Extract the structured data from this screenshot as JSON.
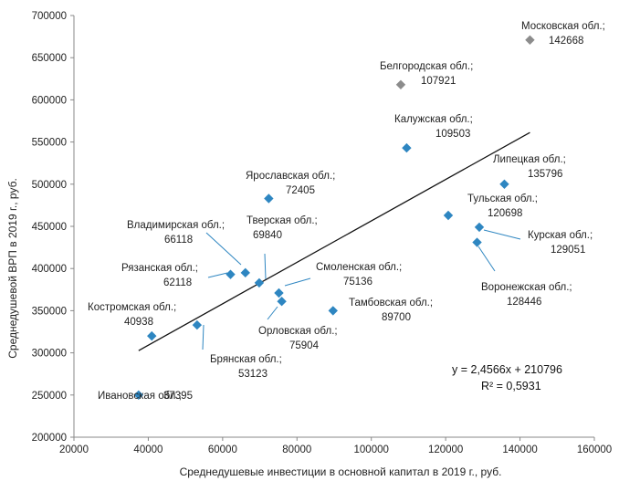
{
  "chart_data": {
    "type": "scatter",
    "xlabel": "Среднедушевые  инвестиции в основной капитал в 2019 г., руб.",
    "ylabel": "Среднедушевой  ВРП в 2019 г., руб.",
    "xlim": [
      20000,
      160000
    ],
    "ylim": [
      200000,
      700000
    ],
    "x_ticks": [
      "20000",
      "40000",
      "60000",
      "80000",
      "100000",
      "120000",
      "140000",
      "160000"
    ],
    "y_ticks": [
      "200000",
      "250000",
      "300000",
      "350000",
      "400000",
      "450000",
      "500000",
      "550000",
      "600000",
      "650000",
      "700000"
    ],
    "grid": "none",
    "colors": {
      "point": "#2E86C1",
      "outlier": "#8C8C8C",
      "trendline": "#111111",
      "leader": "#2E86C1"
    },
    "points": [
      {
        "name": "Ивановская обл.;",
        "value": "37395",
        "x": 37395,
        "y": 250000,
        "outlier": false
      },
      {
        "name": "Костромская обл.;",
        "value": "40938",
        "x": 40938,
        "y": 320000,
        "outlier": false
      },
      {
        "name": "Брянская обл.;",
        "value": "53123",
        "x": 53123,
        "y": 333000,
        "outlier": false
      },
      {
        "name": "Рязанская обл.;",
        "value": "62118",
        "x": 62118,
        "y": 393000,
        "outlier": false
      },
      {
        "name": "Владимирская обл.;",
        "value": "66118",
        "x": 66118,
        "y": 395000,
        "outlier": false
      },
      {
        "name": "Тверская обл.;",
        "value": "69840",
        "x": 69840,
        "y": 383000,
        "outlier": false
      },
      {
        "name": "Ярославская обл.;",
        "value": "72405",
        "x": 72405,
        "y": 483000,
        "outlier": false
      },
      {
        "name": "Смоленская обл.;",
        "value": "75136",
        "x": 75136,
        "y": 371000,
        "outlier": false
      },
      {
        "name": "Орловская обл.;",
        "value": "75904",
        "x": 75904,
        "y": 361000,
        "outlier": false
      },
      {
        "name": "Тамбовская обл.;",
        "value": "89700",
        "x": 89700,
        "y": 350000,
        "outlier": false
      },
      {
        "name": "Белгородская обл.;",
        "value": "107921",
        "x": 107921,
        "y": 618000,
        "outlier": true
      },
      {
        "name": "Калужская обл.;",
        "value": "109503",
        "x": 109503,
        "y": 543000,
        "outlier": false
      },
      {
        "name": "Тульская обл.;",
        "value": "120698",
        "x": 120698,
        "y": 463000,
        "outlier": false
      },
      {
        "name": "Воронежская обл.;",
        "value": "128446",
        "x": 128446,
        "y": 431000,
        "outlier": false
      },
      {
        "name": "Курская обл.;",
        "value": "129051",
        "x": 129051,
        "y": 449000,
        "outlier": false
      },
      {
        "name": "Липецкая обл.;",
        "value": "135796",
        "x": 135796,
        "y": 500000,
        "outlier": false
      },
      {
        "name": "Московская обл.;",
        "value": "142668",
        "x": 142668,
        "y": 671000,
        "outlier": true
      }
    ],
    "trendline": {
      "equation": "y = 2,4566x + 210796",
      "r2": "R² = 0,5931",
      "slope": 2.4566,
      "intercept": 210796,
      "x_range": [
        37395,
        142668
      ]
    }
  }
}
